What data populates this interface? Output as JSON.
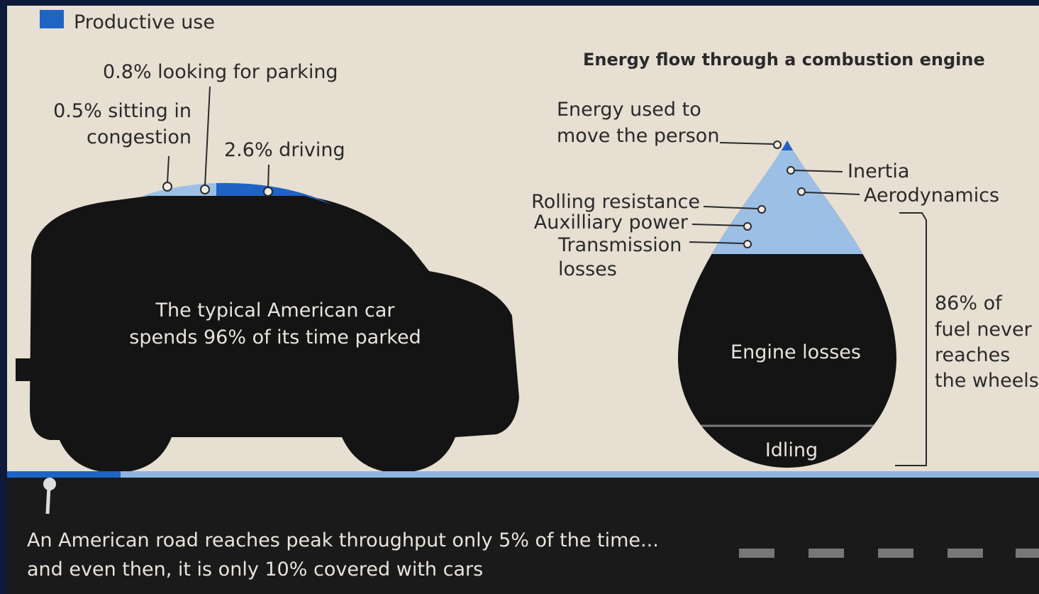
{
  "legend": {
    "label": "Productive use"
  },
  "car": {
    "annotations": [
      "0.8% looking for parking",
      [
        "0.5% sitting in",
        "congestion"
      ],
      "2.6% driving"
    ],
    "caption": [
      "The typical American car",
      "spends 96% of its time parked"
    ]
  },
  "engine": {
    "title": "Energy flow through a combustion engine",
    "moves_person": [
      "Energy used to",
      "move the person"
    ],
    "inertia": "Inertia",
    "aerodynamics": "Aerodynamics",
    "rolling_resistance": "Rolling resistance",
    "auxiliary_power": "Auxilliary power",
    "transmission_losses": [
      "Transmission",
      "losses"
    ],
    "engine_losses": "Engine losses",
    "idling": "Idling",
    "bracket_note": [
      "86% of",
      "fuel never",
      "reaches",
      "the wheels"
    ]
  },
  "road": {
    "lines": [
      "An American road reaches peak throughput only 5% of the time...",
      "and even then, it is only 10% covered with cars"
    ]
  }
}
